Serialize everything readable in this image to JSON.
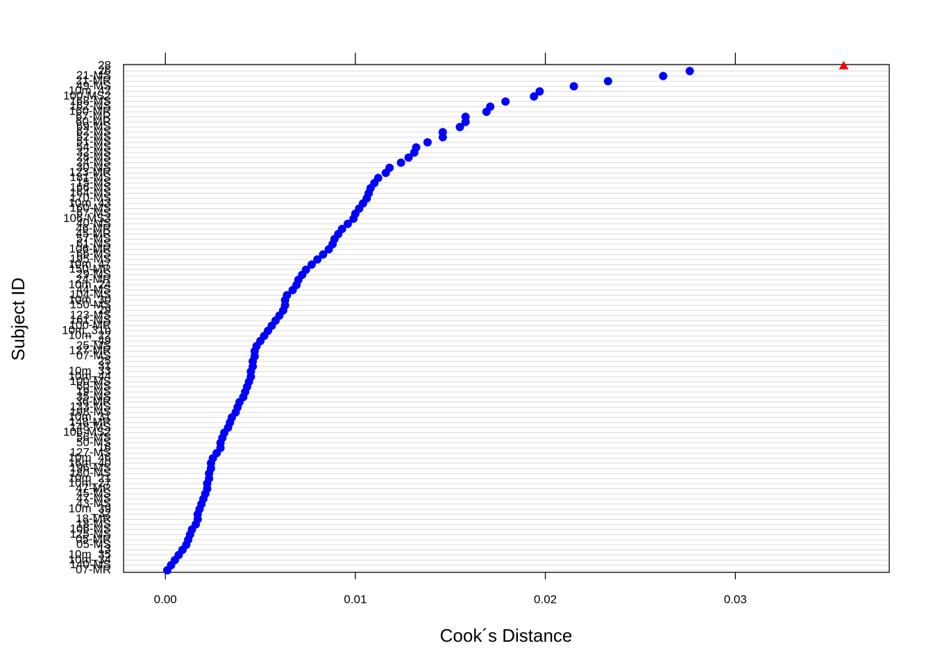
{
  "chart_data": {
    "type": "dotplot",
    "xlabel": "Cook´s Distance",
    "ylabel": "Subject ID",
    "categories": [
      "07-MR",
      "140-MS",
      "10m_34",
      "10m_35",
      "13",
      "05-MS",
      "05-MR",
      "125-MS",
      "106-MS",
      "18-MS",
      "18-MR",
      "32",
      "10m_39",
      "43-MS",
      "47-MS",
      "45-MS",
      "47-MR",
      "10m_27",
      "10m_21",
      "180-MS",
      "196-MS",
      "16m_40",
      "10m_46",
      "127-MS",
      "16",
      "50-MS",
      "56-MS",
      "106-MS2",
      "148-MS",
      "148-MR",
      "10m_31",
      "198-MS",
      "133-MS",
      "36-MR",
      "35-MS",
      "19-MS",
      "60-MS",
      "100-MS",
      "10m_44",
      "10m_33",
      "31",
      "25",
      "07-MS",
      "127-MR",
      "25-MS",
      "49",
      "10m_22",
      "10m_31b",
      "100-MR",
      "161-MS",
      "123-MS",
      "29",
      "150-MS",
      "10m_30",
      "104-MS",
      "44-MS",
      "10m_24",
      "24-MR",
      "29-MS",
      "150-MR",
      "10m_47",
      "195-MS",
      "66-MS",
      "106-MR",
      "61-MS",
      "57-MS",
      "45-MR",
      "46-MR",
      "40-MS",
      "106-MS3",
      "67-MS",
      "160-MS",
      "10m_43",
      "170-MS",
      "164-MS",
      "166-MS",
      "15-MS",
      "181-MS",
      "123-MR",
      "30-MS",
      "24-MS",
      "28-MS",
      "32-MS",
      "54-MS",
      "51-MS",
      "52-MS",
      "62-MS",
      "69-MS",
      "60-MR",
      "67-MR",
      "160-MR",
      "162-MS",
      "168-MS",
      "100-MS2",
      "10m_42",
      "49-MS",
      "21-MR",
      "21-MS",
      "26",
      "28"
    ],
    "values": [
      0.0001,
      0.0003,
      0.0005,
      0.0007,
      0.0009,
      0.0011,
      0.0012,
      0.0013,
      0.0014,
      0.0016,
      0.0017,
      0.0017,
      0.0018,
      0.0019,
      0.002,
      0.0021,
      0.0022,
      0.0022,
      0.0023,
      0.0023,
      0.0024,
      0.0024,
      0.0025,
      0.0027,
      0.0029,
      0.0029,
      0.003,
      0.0031,
      0.0033,
      0.0034,
      0.0035,
      0.0037,
      0.0038,
      0.0039,
      0.0041,
      0.0042,
      0.0043,
      0.0044,
      0.0045,
      0.0045,
      0.0046,
      0.0046,
      0.0047,
      0.0047,
      0.0048,
      0.005,
      0.0052,
      0.0054,
      0.0056,
      0.0058,
      0.006,
      0.0062,
      0.0063,
      0.0063,
      0.0064,
      0.0067,
      0.0069,
      0.007,
      0.0072,
      0.0074,
      0.0077,
      0.008,
      0.0083,
      0.0086,
      0.0088,
      0.0089,
      0.0091,
      0.0093,
      0.0096,
      0.0099,
      0.01,
      0.0102,
      0.0104,
      0.0106,
      0.0107,
      0.0108,
      0.011,
      0.0112,
      0.0116,
      0.0118,
      0.0124,
      0.0128,
      0.0131,
      0.0132,
      0.0138,
      0.0146,
      0.0146,
      0.0155,
      0.0158,
      0.0158,
      0.0169,
      0.0171,
      0.0179,
      0.0194,
      0.0197,
      0.0215,
      0.0233,
      0.0262,
      0.0276,
      0.0357
    ],
    "color": "#0000ff",
    "highlight": {
      "index": 99,
      "color": "#ff0000",
      "shape": "triangle"
    },
    "xlim": [
      -0.0022,
      0.0381
    ],
    "xticks": [
      {
        "value": 0,
        "label": "0.00"
      },
      {
        "value": 0.01,
        "label": "0.01"
      },
      {
        "value": 0.02,
        "label": "0.02"
      },
      {
        "value": 0.03,
        "label": "0.03"
      }
    ],
    "grid": true
  }
}
